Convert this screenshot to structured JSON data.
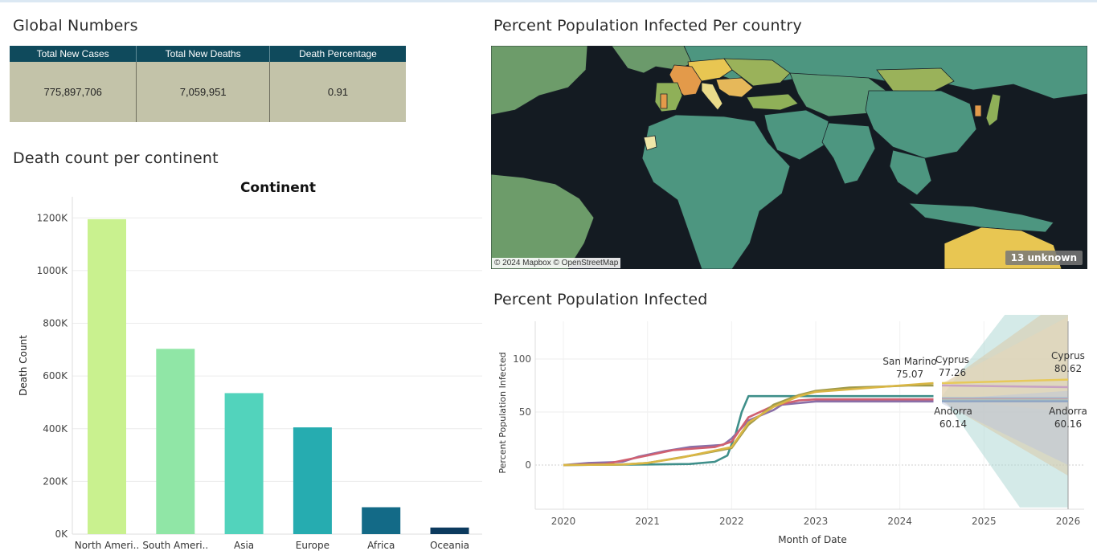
{
  "global": {
    "title": "Global Numbers",
    "headers": [
      "Total New Cases",
      "Total New Deaths",
      "Death Percentage"
    ],
    "values": [
      "775,897,706",
      "7,059,951",
      "0.91"
    ]
  },
  "continent_section": {
    "title": "Death count per continent"
  },
  "map_section": {
    "title": "Percent Population Infected Per country",
    "attribution": "© 2024 Mapbox © OpenStreetMap",
    "unknown_badge": "13 unknown"
  },
  "infected_section": {
    "title": "Percent Population Infected"
  },
  "colors": {
    "header_bg": "#0f4a5c",
    "kpi_bg": "#c3c3a9",
    "map_ocean": "#141b22"
  },
  "chart_data": [
    {
      "type": "bar",
      "title": "Continent",
      "ylabel": "Death Count",
      "xlabel": "",
      "categories": [
        "North Ameri..",
        "South Ameri..",
        "Asia",
        "Europe",
        "Africa",
        "Oceania"
      ],
      "values": [
        1195000,
        703000,
        535000,
        405000,
        102000,
        25000
      ],
      "colors": [
        "#c9f18f",
        "#90e6a6",
        "#52d3bc",
        "#26acb0",
        "#136a87",
        "#0c3a5e"
      ],
      "ylim": [
        0,
        1280000
      ],
      "yticks": [
        0,
        200000,
        400000,
        600000,
        800000,
        1000000,
        1200000
      ],
      "ytick_labels": [
        "0K",
        "200K",
        "400K",
        "600K",
        "800K",
        "1000K",
        "1200K"
      ],
      "grid": true
    },
    {
      "type": "line",
      "title": "",
      "xlabel": "Month of Date",
      "ylabel": "Percent Population Infected",
      "xlim": [
        2020,
        2026
      ],
      "ylim": [
        -40,
        130
      ],
      "xticks": [
        2020,
        2021,
        2022,
        2023,
        2024,
        2025,
        2026
      ],
      "yticks": [
        0,
        50,
        100
      ],
      "series": [
        {
          "color": "#3f8f8a",
          "points": [
            [
              2020.0,
              0
            ],
            [
              2020.5,
              0.3
            ],
            [
              2021.0,
              0.5
            ],
            [
              2021.5,
              1.0
            ],
            [
              2021.8,
              3
            ],
            [
              2021.95,
              9
            ],
            [
              2022.05,
              30
            ],
            [
              2022.12,
              50
            ],
            [
              2022.2,
              65
            ],
            [
              2022.5,
              65
            ],
            [
              2023.0,
              65
            ],
            [
              2024.4,
              65
            ]
          ]
        },
        {
          "color": "#8a6fa8",
          "points": [
            [
              2020.0,
              0
            ],
            [
              2020.3,
              2
            ],
            [
              2020.7,
              3
            ],
            [
              2020.9,
              8
            ],
            [
              2021.2,
              13
            ],
            [
              2021.5,
              17
            ],
            [
              2021.9,
              19
            ],
            [
              2022.0,
              25
            ],
            [
              2022.2,
              42
            ],
            [
              2022.5,
              52
            ],
            [
              2022.6,
              57
            ],
            [
              2023.0,
              60
            ],
            [
              2024.4,
              60
            ]
          ]
        },
        {
          "color": "#d06070",
          "points": [
            [
              2020.0,
              0
            ],
            [
              2020.5,
              1
            ],
            [
              2021.0,
              9
            ],
            [
              2021.3,
              14
            ],
            [
              2021.8,
              17
            ],
            [
              2022.0,
              22
            ],
            [
              2022.2,
              45
            ],
            [
              2022.5,
              56
            ],
            [
              2022.8,
              61
            ],
            [
              2023.0,
              62
            ],
            [
              2024.4,
              62
            ]
          ]
        },
        {
          "color": "#a09a4a",
          "points": [
            [
              2020.0,
              0
            ],
            [
              2020.7,
              0.5
            ],
            [
              2021.0,
              2
            ],
            [
              2021.3,
              6
            ],
            [
              2021.6,
              10
            ],
            [
              2021.8,
              13
            ],
            [
              2022.0,
              16
            ],
            [
              2022.2,
              38
            ],
            [
              2022.5,
              57
            ],
            [
              2022.8,
              66
            ],
            [
              2023.0,
              70
            ],
            [
              2023.4,
              73
            ],
            [
              2023.8,
              74
            ],
            [
              2024.1,
              75
            ],
            [
              2024.4,
              75.07
            ]
          ]
        },
        {
          "color": "#d9b644",
          "points": [
            [
              2020.0,
              0
            ],
            [
              2020.7,
              0.5
            ],
            [
              2021.0,
              2
            ],
            [
              2021.4,
              7
            ],
            [
              2021.7,
              12
            ],
            [
              2022.0,
              17
            ],
            [
              2022.2,
              40
            ],
            [
              2022.5,
              55
            ],
            [
              2022.8,
              65
            ],
            [
              2023.0,
              69
            ],
            [
              2023.5,
              72
            ],
            [
              2024.0,
              75
            ],
            [
              2024.4,
              77.26
            ]
          ]
        }
      ],
      "forecast": {
        "start": 2024.5,
        "end": 2026,
        "lines": [
          {
            "color": "#e7c95a",
            "from": 77.26,
            "to": 80.62
          },
          {
            "color": "#c7a1c3",
            "from": 75.07,
            "to": 73.5
          },
          {
            "color": "#9ab5cf",
            "from": 63,
            "to": 63
          },
          {
            "color": "#c9a3a3",
            "from": 62,
            "to": 62
          },
          {
            "color": "#a8c9c5",
            "from": 61,
            "to": 61
          },
          {
            "color": "#8fa4c4",
            "from": 60.14,
            "to": 60.16
          }
        ]
      },
      "annotations": [
        {
          "label": "San Marino",
          "value": "75.07"
        },
        {
          "label": "Cyprus",
          "value": "77.26"
        },
        {
          "label": "Andorra",
          "value": "60.14"
        },
        {
          "label": "Cyprus",
          "value": "80.62"
        },
        {
          "label": "Andorra",
          "value": "60.16"
        }
      ],
      "grid": true
    }
  ]
}
